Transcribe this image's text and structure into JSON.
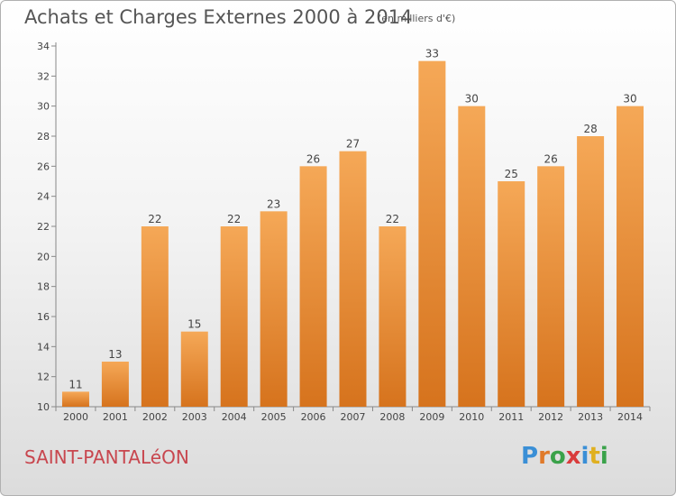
{
  "title": "Achats et Charges Externes 2000 à 2014",
  "subtitle": "(en milliers d'€)",
  "town": "SAINT-PANTALéON",
  "logo": {
    "text": "Proxiti",
    "letters": [
      {
        "ch": "P",
        "color": "#3a8fd6"
      },
      {
        "ch": "r",
        "color": "#e07a2a"
      },
      {
        "ch": "o",
        "color": "#3aa24a"
      },
      {
        "ch": "x",
        "color": "#d93c3c"
      },
      {
        "ch": "i",
        "color": "#3a8fd6"
      },
      {
        "ch": "t",
        "color": "#e0b020"
      },
      {
        "ch": "i",
        "color": "#3aa24a"
      }
    ]
  },
  "colors": {
    "bar_top": "#f5a857",
    "bar_bottom": "#d6731d",
    "title": "#555555",
    "town": "#c8464e"
  },
  "chart_data": {
    "type": "bar",
    "categories": [
      "2000",
      "2001",
      "2002",
      "2003",
      "2004",
      "2005",
      "2006",
      "2007",
      "2008",
      "2009",
      "2010",
      "2011",
      "2012",
      "2013",
      "2014"
    ],
    "values": [
      11,
      13,
      22,
      15,
      22,
      23,
      26,
      27,
      22,
      33,
      30,
      25,
      26,
      28,
      30
    ],
    "ylim": [
      10,
      34
    ],
    "yticks": [
      10,
      12,
      14,
      16,
      18,
      20,
      22,
      24,
      26,
      28,
      30,
      32,
      34
    ],
    "grid": false
  }
}
